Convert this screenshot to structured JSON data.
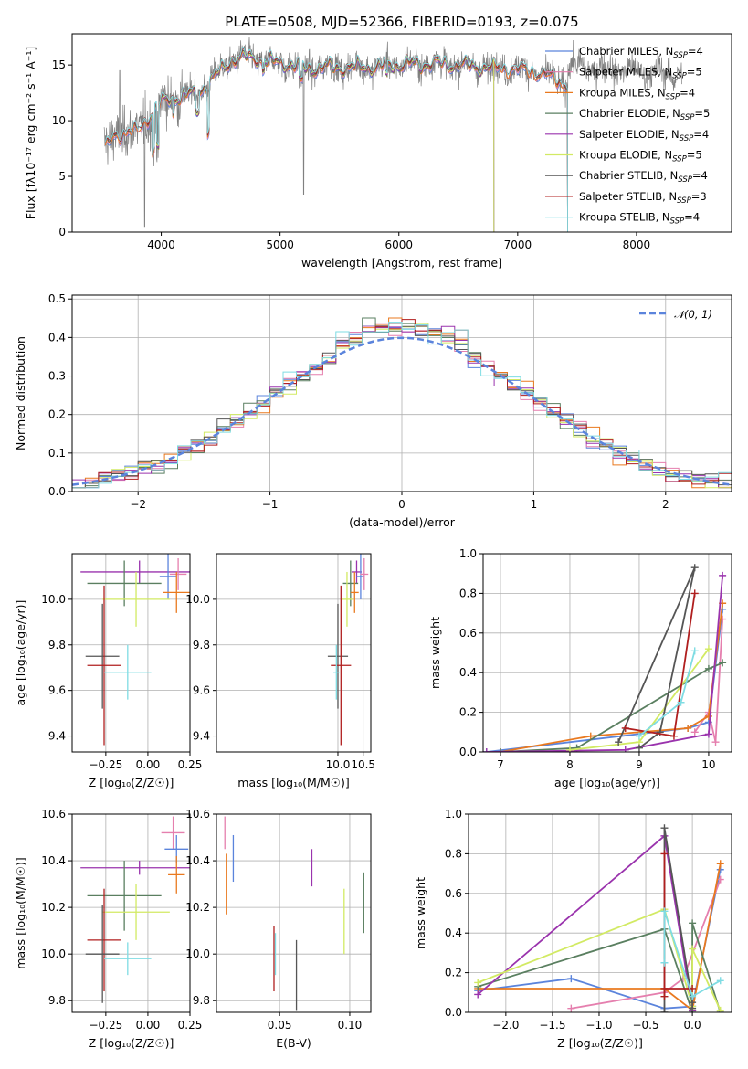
{
  "colors": {
    "chabrier_miles": "#5b84dc",
    "salpeter_miles": "#e57fae",
    "kroupa_miles": "#e9791f",
    "chabrier_elodie": "#5a7f60",
    "salpeter_elodie": "#9a33ad",
    "kroupa_elodie": "#d2ea63",
    "chabrier_stelib": "#555555",
    "salpeter_stelib": "#b01f1f",
    "kroupa_stelib": "#7fdce3",
    "normal": "#5b84dc",
    "gray_data": "#808080"
  },
  "chart_data": [
    {
      "id": "spectrum",
      "type": "line",
      "title": "PLATE=0508, MJD=52366, FIBERID=0193, z=0.075",
      "xlabel": "wavelength [Angstrom, rest frame]",
      "ylabel": "Flux [fλ10⁻¹⁷ erg cm⁻² s⁻¹ A⁻¹]",
      "xlim": [
        3250,
        8800
      ],
      "ylim": [
        0,
        17.8
      ],
      "xticks": [
        "4000",
        "5000",
        "6000",
        "7000",
        "8000"
      ],
      "yticks": [
        "0",
        "5",
        "10",
        "15"
      ],
      "legend_position": "top-right",
      "legend": [
        {
          "label": "Chabrier MILES, N",
          "sub": "SSP",
          "suffix": "=4",
          "color": "chabrier_miles"
        },
        {
          "label": "Salpeter MILES, N",
          "sub": "SSP",
          "suffix": "=5",
          "color": "salpeter_miles"
        },
        {
          "label": "Kroupa MILES, N",
          "sub": "SSP",
          "suffix": "=4",
          "color": "kroupa_miles"
        },
        {
          "label": "Chabrier ELODIE, N",
          "sub": "SSP",
          "suffix": "=5",
          "color": "chabrier_elodie"
        },
        {
          "label": "Salpeter ELODIE, N",
          "sub": "SSP",
          "suffix": "=4",
          "color": "salpeter_elodie"
        },
        {
          "label": "Kroupa ELODIE, N",
          "sub": "SSP",
          "suffix": "=5",
          "color": "kroupa_elodie"
        },
        {
          "label": "Chabrier STELIB, N",
          "sub": "SSP",
          "suffix": "=4",
          "color": "chabrier_stelib"
        },
        {
          "label": "Salpeter STELIB, N",
          "sub": "SSP",
          "suffix": "=3",
          "color": "salpeter_stelib"
        },
        {
          "label": "Kroupa STELIB, N",
          "sub": "SSP",
          "suffix": "=4",
          "color": "kroupa_stelib"
        }
      ],
      "continuum": [
        [
          3530,
          7.5
        ],
        [
          3600,
          8.6
        ],
        [
          3700,
          9.0
        ],
        [
          3800,
          9.0
        ],
        [
          3900,
          10.4
        ],
        [
          4000,
          11.6
        ],
        [
          4100,
          12.0
        ],
        [
          4200,
          12.3
        ],
        [
          4300,
          12.4
        ],
        [
          4400,
          13.4
        ],
        [
          4500,
          14.5
        ],
        [
          4600,
          15.5
        ],
        [
          4700,
          15.7
        ],
        [
          4800,
          15.6
        ],
        [
          4900,
          15.3
        ],
        [
          5000,
          15.2
        ],
        [
          5100,
          15.0
        ],
        [
          5200,
          14.7
        ],
        [
          5300,
          14.7
        ],
        [
          5400,
          14.8
        ],
        [
          5500,
          14.8
        ],
        [
          5600,
          14.7
        ],
        [
          5700,
          14.9
        ],
        [
          5800,
          14.7
        ],
        [
          5900,
          15.0
        ],
        [
          6000,
          15.0
        ],
        [
          6100,
          15.1
        ],
        [
          6200,
          15.0
        ],
        [
          6300,
          15.2
        ],
        [
          6400,
          15.0
        ],
        [
          6500,
          15.0
        ],
        [
          6600,
          14.9
        ],
        [
          6700,
          14.8
        ],
        [
          6800,
          14.7
        ],
        [
          6900,
          14.7
        ],
        [
          7000,
          14.6
        ],
        [
          7100,
          14.5
        ],
        [
          7200,
          14.2
        ],
        [
          7300,
          13.8
        ],
        [
          7420,
          13.2
        ]
      ],
      "models_range": [
        3530,
        7420
      ],
      "data_range": [
        3520,
        8380
      ]
    },
    {
      "id": "residuals",
      "type": "histogram",
      "xlabel": "(data-model)/error",
      "ylabel": "Normed distribution",
      "xlim": [
        -2.5,
        2.5
      ],
      "ylim": [
        0,
        0.51
      ],
      "xticks": [
        "−2",
        "−1",
        "0",
        "1",
        "2"
      ],
      "yticks": [
        "0.0",
        "0.1",
        "0.2",
        "0.3",
        "0.4",
        "0.5"
      ],
      "legend": "𝒩(0, 1)",
      "legend_position": "top-right",
      "bin_width": 0.1,
      "series_colors": [
        "chabrier_miles",
        "salpeter_miles",
        "kroupa_miles",
        "chabrier_elodie",
        "salpeter_elodie",
        "kroupa_elodie",
        "chabrier_stelib",
        "salpeter_stelib",
        "kroupa_stelib"
      ]
    },
    {
      "id": "age_vs_Z",
      "type": "errorbar",
      "xlabel": "Z [log₁₀(Z/Z☉)]",
      "ylabel": "age [log₁₀(age/yr)]",
      "xlim": [
        -0.45,
        0.25
      ],
      "ylim": [
        9.33,
        10.2
      ],
      "xticks": [
        "−0.25",
        "0.00",
        "0.25"
      ],
      "yticks": [
        "9.4",
        "9.6",
        "9.8",
        "10.0"
      ],
      "points": [
        {
          "c": "salpeter_elodie",
          "x": -0.05,
          "xe": 0.35,
          "y": 10.12,
          "ye": 0.05
        },
        {
          "c": "chabrier_miles",
          "x": 0.12,
          "xe": 0.05,
          "y": 10.1,
          "ye": 0.1
        },
        {
          "c": "salpeter_miles",
          "x": 0.18,
          "xe": 0.05,
          "y": 10.11,
          "ye": 0.07
        },
        {
          "c": "chabrier_elodie",
          "x": -0.14,
          "xe": 0.22,
          "y": 10.07,
          "ye": 0.1
        },
        {
          "c": "kroupa_miles",
          "x": 0.17,
          "xe": 0.08,
          "y": 10.03,
          "ye": 0.09
        },
        {
          "c": "kroupa_elodie",
          "x": -0.07,
          "xe": 0.2,
          "y": 10.0,
          "ye": 0.12
        },
        {
          "c": "chabrier_stelib",
          "x": -0.27,
          "xe": 0.1,
          "y": 9.75,
          "ye": 0.23
        },
        {
          "c": "salpeter_stelib",
          "x": -0.26,
          "xe": 0.1,
          "y": 9.71,
          "ye": 0.35
        },
        {
          "c": "kroupa_stelib",
          "x": -0.12,
          "xe": 0.14,
          "y": 9.68,
          "ye": 0.12
        }
      ]
    },
    {
      "id": "age_vs_mass",
      "type": "errorbar",
      "xlabel": "mass [log₁₀(M/M☉)]",
      "ylabel": "",
      "xlim": [
        7.6,
        10.65
      ],
      "ylim": [
        9.33,
        10.2
      ],
      "xticks": [
        "10.0",
        "10.5"
      ],
      "yticks": [
        "9.4",
        "9.6",
        "9.8",
        "10.0"
      ],
      "points": [
        {
          "c": "salpeter_elodie",
          "x": 10.37,
          "xe": 0.1,
          "y": 10.12,
          "ye": 0.05
        },
        {
          "c": "chabrier_miles",
          "x": 10.45,
          "xe": 0.08,
          "y": 10.1,
          "ye": 0.1
        },
        {
          "c": "salpeter_miles",
          "x": 10.52,
          "xe": 0.08,
          "y": 10.11,
          "ye": 0.07
        },
        {
          "c": "chabrier_elodie",
          "x": 10.25,
          "xe": 0.15,
          "y": 10.07,
          "ye": 0.1
        },
        {
          "c": "kroupa_miles",
          "x": 10.33,
          "xe": 0.08,
          "y": 10.03,
          "ye": 0.09
        },
        {
          "c": "kroupa_elodie",
          "x": 10.18,
          "xe": 0.12,
          "y": 10.0,
          "ye": 0.12
        },
        {
          "c": "chabrier_stelib",
          "x": 10.0,
          "xe": 0.2,
          "y": 9.75,
          "ye": 0.23
        },
        {
          "c": "salpeter_stelib",
          "x": 10.06,
          "xe": 0.2,
          "y": 9.71,
          "ye": 0.35
        },
        {
          "c": "kroupa_stelib",
          "x": 9.97,
          "xe": 0.06,
          "y": 9.68,
          "ye": 0.12
        }
      ]
    },
    {
      "id": "weight_vs_age",
      "type": "line",
      "xlabel": "age [log₁₀(age/yr)]",
      "ylabel": "mass weight",
      "xlim": [
        6.75,
        10.33
      ],
      "ylim": [
        0,
        1.0
      ],
      "xticks": [
        "7",
        "8",
        "9",
        "10"
      ],
      "yticks": [
        "0.0",
        "0.2",
        "0.4",
        "0.6",
        "0.8",
        "1.0"
      ],
      "series": [
        {
          "c": "chabrier_miles",
          "pts": [
            [
              6.8,
              0.0
            ],
            [
              9.7,
              0.12
            ],
            [
              10.0,
              0.15
            ],
            [
              10.2,
              0.72
            ]
          ]
        },
        {
          "c": "salpeter_miles",
          "pts": [
            [
              9.8,
              0.1
            ],
            [
              10.0,
              0.2
            ],
            [
              10.1,
              0.05
            ],
            [
              10.2,
              0.67
            ]
          ]
        },
        {
          "c": "kroupa_miles",
          "pts": [
            [
              7.0,
              0.0
            ],
            [
              8.3,
              0.08
            ],
            [
              9.7,
              0.12
            ],
            [
              10.0,
              0.18
            ],
            [
              10.2,
              0.75
            ]
          ]
        },
        {
          "c": "chabrier_elodie",
          "pts": [
            [
              7.0,
              0.0
            ],
            [
              8.1,
              0.02
            ],
            [
              10.0,
              0.42
            ],
            [
              10.2,
              0.45
            ]
          ]
        },
        {
          "c": "salpeter_elodie",
          "pts": [
            [
              6.8,
              0.0
            ],
            [
              8.8,
              0.01
            ],
            [
              10.0,
              0.09
            ],
            [
              10.2,
              0.89
            ]
          ]
        },
        {
          "c": "kroupa_elodie",
          "pts": [
            [
              8.0,
              0.01
            ],
            [
              9.0,
              0.05
            ],
            [
              10.0,
              0.52
            ]
          ]
        },
        {
          "c": "chabrier_stelib",
          "pts": [
            [
              8.7,
              0.05
            ],
            [
              9.8,
              0.93
            ],
            [
              9.3,
              0.1
            ],
            [
              9.0,
              0.02
            ]
          ]
        },
        {
          "c": "salpeter_stelib",
          "pts": [
            [
              8.8,
              0.12
            ],
            [
              9.5,
              0.08
            ],
            [
              9.8,
              0.8
            ]
          ]
        },
        {
          "c": "kroupa_stelib",
          "pts": [
            [
              9.0,
              0.08
            ],
            [
              9.6,
              0.25
            ],
            [
              9.8,
              0.51
            ]
          ]
        }
      ]
    },
    {
      "id": "mass_vs_Z",
      "type": "errorbar",
      "xlabel": "Z [log₁₀(Z/Z☉)]",
      "ylabel": "mass [log₁₀(M/M☉)]",
      "xlim": [
        -0.45,
        0.25
      ],
      "ylim": [
        9.75,
        10.6
      ],
      "xticks": [
        "−0.25",
        "0.00",
        "0.25"
      ],
      "yticks": [
        "9.8",
        "10.0",
        "10.2",
        "10.4",
        "10.6"
      ],
      "points": [
        {
          "c": "salpeter_miles",
          "x": 0.15,
          "xe": 0.07,
          "y": 10.52,
          "ye": 0.07
        },
        {
          "c": "chabrier_miles",
          "x": 0.17,
          "xe": 0.07,
          "y": 10.45,
          "ye": 0.06
        },
        {
          "c": "salpeter_elodie",
          "x": -0.05,
          "xe": 0.35,
          "y": 10.37,
          "ye": 0.03
        },
        {
          "c": "kroupa_miles",
          "x": 0.17,
          "xe": 0.05,
          "y": 10.34,
          "ye": 0.08
        },
        {
          "c": "chabrier_elodie",
          "x": -0.14,
          "xe": 0.22,
          "y": 10.25,
          "ye": 0.15
        },
        {
          "c": "kroupa_elodie",
          "x": -0.07,
          "xe": 0.2,
          "y": 10.18,
          "ye": 0.12
        },
        {
          "c": "salpeter_stelib",
          "x": -0.26,
          "xe": 0.1,
          "y": 10.06,
          "ye": 0.22
        },
        {
          "c": "chabrier_stelib",
          "x": -0.27,
          "xe": 0.1,
          "y": 10.0,
          "ye": 0.21
        },
        {
          "c": "kroupa_stelib",
          "x": -0.12,
          "xe": 0.14,
          "y": 9.98,
          "ye": 0.07
        }
      ]
    },
    {
      "id": "mass_vs_ebv",
      "type": "errorbar",
      "xlabel": "E(B-V)",
      "ylabel": "",
      "xlim": [
        0.005,
        0.115
      ],
      "ylim": [
        9.75,
        10.6
      ],
      "xticks": [
        "0.05",
        "0.10"
      ],
      "yticks": [
        "9.8",
        "10.0",
        "10.2",
        "10.4",
        "10.6"
      ],
      "points": [
        {
          "c": "salpeter_miles",
          "x": 0.011,
          "xe": 0,
          "y": 10.52,
          "ye": 0.07
        },
        {
          "c": "chabrier_miles",
          "x": 0.017,
          "xe": 0,
          "y": 10.41,
          "ye": 0.1
        },
        {
          "c": "kroupa_miles",
          "x": 0.012,
          "xe": 0,
          "y": 10.3,
          "ye": 0.13
        },
        {
          "c": "salpeter_elodie",
          "x": 0.073,
          "xe": 0,
          "y": 10.37,
          "ye": 0.08
        },
        {
          "c": "kroupa_elodie",
          "x": 0.096,
          "xe": 0,
          "y": 10.14,
          "ye": 0.14
        },
        {
          "c": "chabrier_elodie",
          "x": 0.11,
          "xe": 0,
          "y": 10.22,
          "ye": 0.13
        },
        {
          "c": "salpeter_stelib",
          "x": 0.046,
          "xe": 0,
          "y": 9.98,
          "ye": 0.14
        },
        {
          "c": "kroupa_stelib",
          "x": 0.047,
          "xe": 0,
          "y": 10.0,
          "ye": 0.09
        },
        {
          "c": "chabrier_stelib",
          "x": 0.062,
          "xe": 0,
          "y": 9.91,
          "ye": 0.15
        }
      ]
    },
    {
      "id": "weight_vs_Z",
      "type": "line",
      "xlabel": "Z [log₁₀(Z/Z☉)]",
      "ylabel": "mass weight",
      "xlim": [
        -2.4,
        0.42
      ],
      "ylim": [
        0,
        1.0
      ],
      "xticks": [
        "−2.0",
        "−1.5",
        "−1.0",
        "−0.5",
        "0.0"
      ],
      "yticks": [
        "0.0",
        "0.2",
        "0.4",
        "0.6",
        "0.8",
        "1.0"
      ],
      "series": [
        {
          "c": "chabrier_miles",
          "pts": [
            [
              -2.3,
              0.11
            ],
            [
              -1.3,
              0.17
            ],
            [
              -0.3,
              0.02
            ],
            [
              0.0,
              0.03
            ],
            [
              0.3,
              0.72
            ]
          ]
        },
        {
          "c": "salpeter_miles",
          "pts": [
            [
              -1.3,
              0.02
            ],
            [
              -0.3,
              0.1
            ],
            [
              -0.1,
              0.17
            ],
            [
              0.3,
              0.67
            ]
          ]
        },
        {
          "c": "kroupa_miles",
          "pts": [
            [
              -2.3,
              0.12
            ],
            [
              -0.3,
              0.12
            ],
            [
              0.0,
              0.01
            ],
            [
              0.3,
              0.75
            ]
          ]
        },
        {
          "c": "chabrier_elodie",
          "pts": [
            [
              -2.3,
              0.13
            ],
            [
              -0.3,
              0.42
            ],
            [
              0.0,
              0.0
            ],
            [
              0.0,
              0.45
            ],
            [
              0.3,
              0.0
            ]
          ]
        },
        {
          "c": "salpeter_elodie",
          "pts": [
            [
              -2.3,
              0.09
            ],
            [
              -0.3,
              0.89
            ],
            [
              0.0,
              0.01
            ],
            [
              0.0,
              0.01
            ]
          ]
        },
        {
          "c": "kroupa_elodie",
          "pts": [
            [
              -2.3,
              0.15
            ],
            [
              -0.3,
              0.52
            ],
            [
              0.0,
              0.03
            ],
            [
              0.0,
              0.32
            ],
            [
              0.3,
              0.01
            ]
          ]
        },
        {
          "c": "chabrier_stelib",
          "pts": [
            [
              -0.3,
              0.0
            ],
            [
              -0.3,
              0.93
            ],
            [
              0.0,
              0.05
            ],
            [
              0.0,
              0.02
            ]
          ]
        },
        {
          "c": "salpeter_stelib",
          "pts": [
            [
              -0.3,
              0.08
            ],
            [
              -0.3,
              0.8
            ],
            [
              -0.3,
              0.12
            ],
            [
              0.0,
              0.12
            ]
          ]
        },
        {
          "c": "kroupa_stelib",
          "pts": [
            [
              -0.3,
              0.25
            ],
            [
              -0.3,
              0.51
            ],
            [
              0.0,
              0.08
            ],
            [
              0.3,
              0.16
            ]
          ]
        }
      ]
    }
  ]
}
